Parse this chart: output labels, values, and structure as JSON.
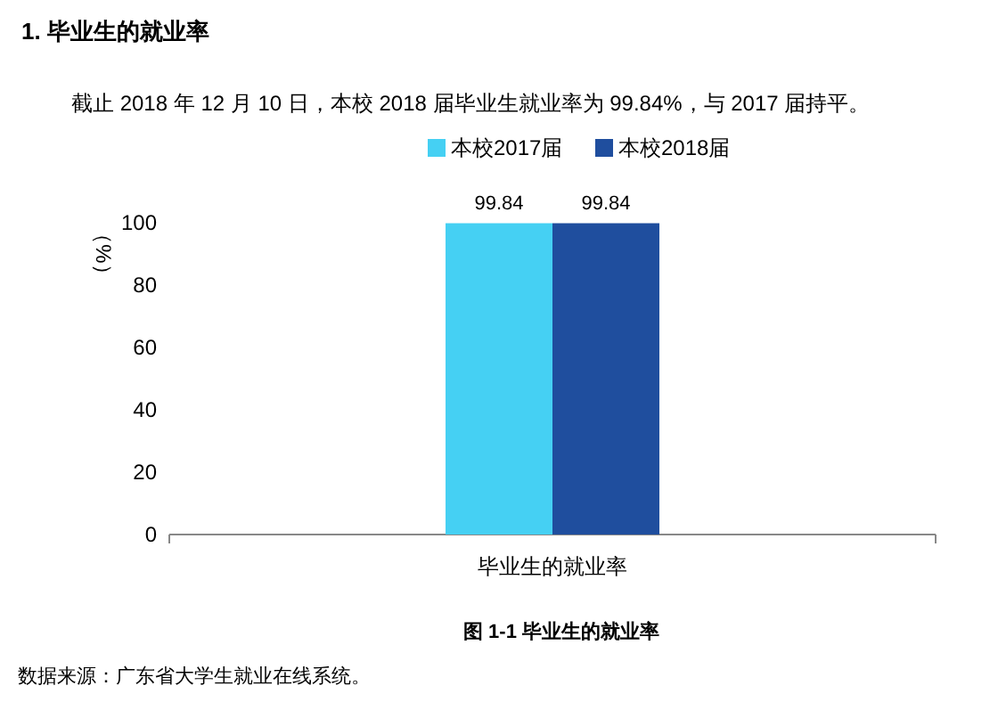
{
  "chart_data": {
    "type": "bar",
    "title": "1.  毕业生的就业率",
    "subtitle": "截止 2018 年 12 月 10 日，本校 2018 届毕业生就业率为 99.84%，与 2017 届持平。",
    "ylabel": "（%）",
    "categories": [
      "毕业生的就业率"
    ],
    "series": [
      {
        "name": "本校2017届",
        "color": "#45d0f3",
        "values": [
          99.84
        ]
      },
      {
        "name": "本校2018届",
        "color": "#1f4e9e",
        "values": [
          99.84
        ]
      }
    ],
    "ylim": [
      0,
      100
    ],
    "yticks": [
      0,
      20,
      40,
      60,
      80,
      100
    ],
    "data_labels": true,
    "legend": "top",
    "annotations": [
      "图 1-1      毕业生的就业率",
      "数据来源：广东省大学生就业在线系统。"
    ]
  }
}
